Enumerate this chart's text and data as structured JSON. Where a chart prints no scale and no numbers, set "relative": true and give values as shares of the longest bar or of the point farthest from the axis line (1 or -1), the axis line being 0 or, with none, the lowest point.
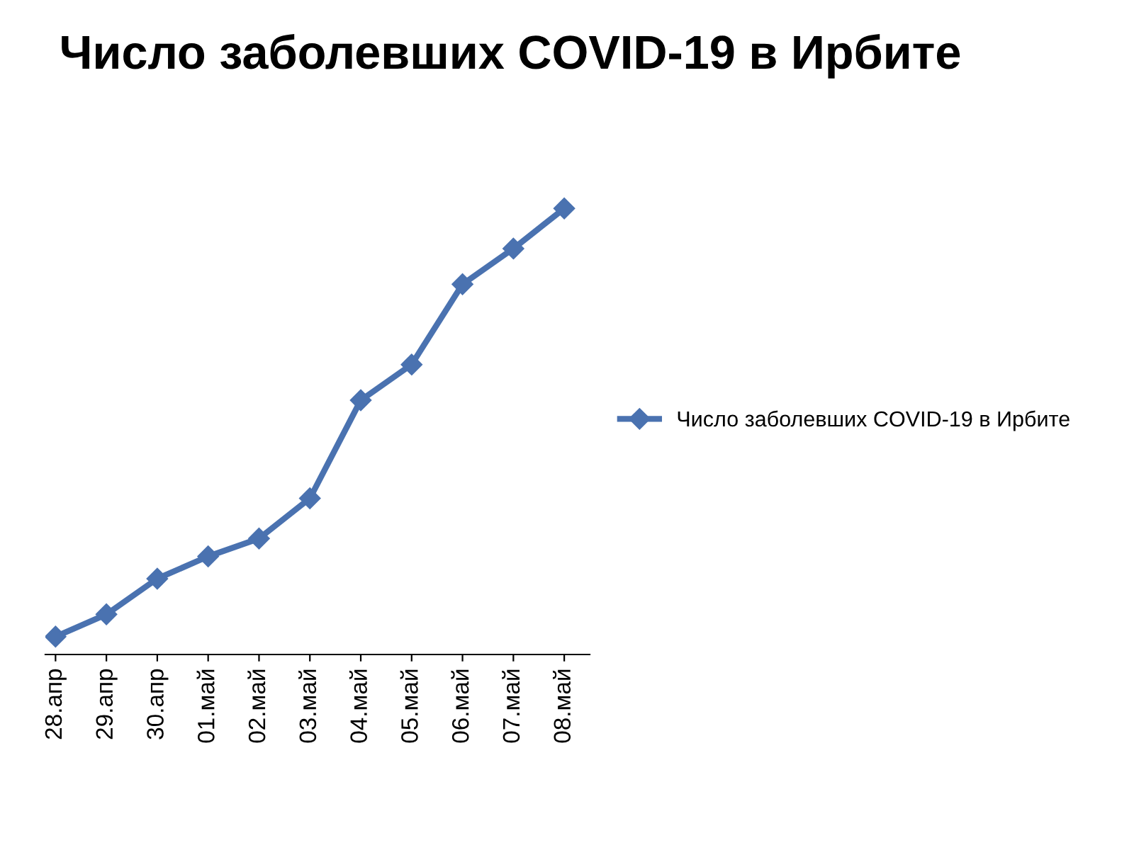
{
  "chart_data": {
    "type": "line",
    "title": "Число заболевших COVID-19 в Ирбите",
    "categories": [
      "28.апр",
      "29.апр",
      "30.апр",
      "01.май",
      "02.май",
      "03.май",
      "04.май",
      "05.май",
      "06.май",
      "07.май",
      "08.май"
    ],
    "series": [
      {
        "name": "Число заболевших COVID-19 в Ирбите",
        "color": "#4a72b0",
        "values": [
          0.04,
          0.09,
          0.17,
          0.22,
          0.26,
          0.35,
          0.57,
          0.65,
          0.83,
          0.91,
          1.0
        ]
      }
    ],
    "relative": true,
    "marker": "diamond",
    "line_style": "solid",
    "legend": "right"
  }
}
